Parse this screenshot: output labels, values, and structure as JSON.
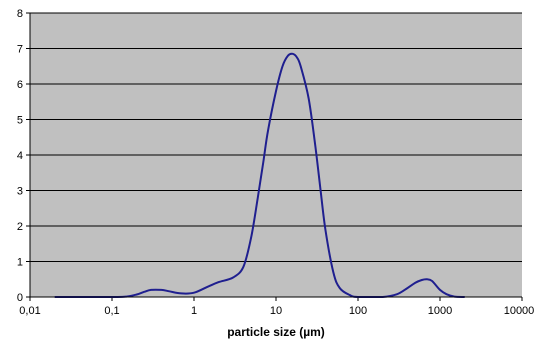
{
  "chart_data": {
    "type": "line",
    "xlabel": "particle size (µm)",
    "ylabel": "",
    "title": "",
    "x_scale": "log",
    "xlim": [
      0.01,
      10000
    ],
    "ylim": [
      0,
      8
    ],
    "x_ticks": [
      0.01,
      0.1,
      1,
      10,
      100,
      1000,
      10000
    ],
    "x_tick_labels": [
      "0,01",
      "0,1",
      "1",
      "10",
      "100",
      "1000",
      "10000"
    ],
    "y_ticks": [
      0,
      1,
      2,
      3,
      4,
      5,
      6,
      7,
      8
    ],
    "y_tick_labels": [
      "0",
      "1",
      "2",
      "3",
      "4",
      "5",
      "6",
      "7",
      "8"
    ],
    "grid": "horizontal",
    "legend": "none",
    "colors": {
      "plot_background": "#c0c0c0",
      "line": "#1f1f8f",
      "grid": "#000000"
    },
    "series": [
      {
        "x": [
          0.02,
          0.1,
          0.15,
          0.2,
          0.25,
          0.3,
          0.4,
          0.5,
          0.7,
          1,
          1.5,
          2,
          3,
          4,
          5,
          6,
          7,
          8,
          10,
          12,
          14,
          16,
          18,
          20,
          25,
          30,
          35,
          40,
          50,
          60,
          80,
          100,
          200,
          300,
          400,
          500,
          600,
          700,
          800,
          1000,
          1200,
          1500,
          2000
        ],
        "y": [
          0,
          0,
          0.01,
          0.07,
          0.15,
          0.2,
          0.2,
          0.16,
          0.1,
          0.12,
          0.3,
          0.42,
          0.55,
          0.85,
          1.7,
          2.8,
          3.8,
          4.7,
          5.8,
          6.5,
          6.8,
          6.85,
          6.75,
          6.5,
          5.6,
          4.3,
          3.0,
          1.9,
          0.7,
          0.25,
          0.05,
          0,
          0,
          0.08,
          0.25,
          0.4,
          0.48,
          0.5,
          0.45,
          0.2,
          0.08,
          0.01,
          0
        ]
      }
    ]
  }
}
